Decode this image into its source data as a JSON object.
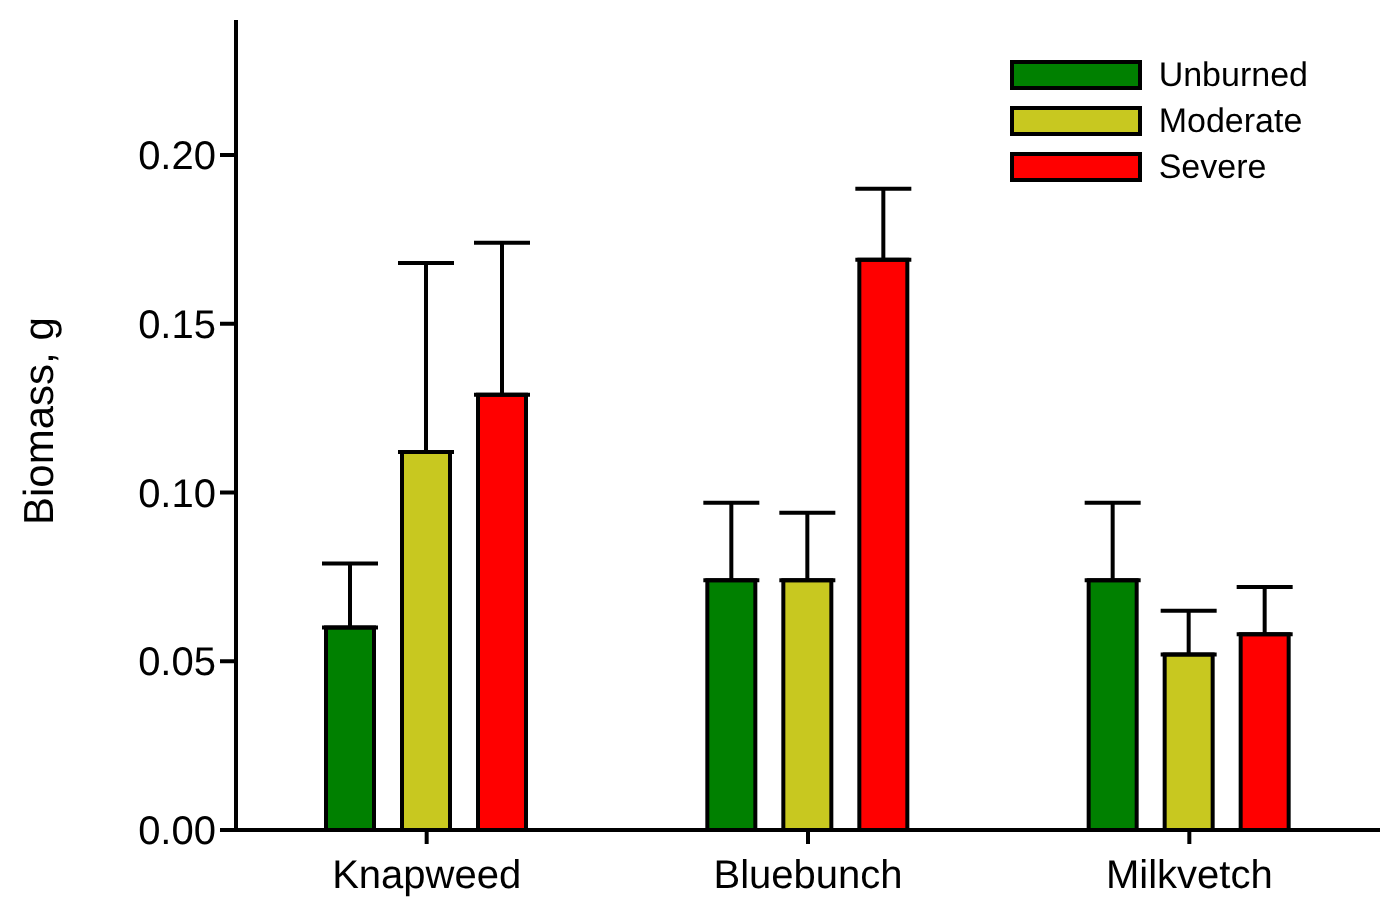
{
  "chart_data": {
    "type": "bar",
    "ylabel": "Biomass, g",
    "categories": [
      "Knapweed",
      "Bluebunch",
      "Milkvetch"
    ],
    "series": [
      {
        "name": "Unburned",
        "color": "#008000",
        "values": [
          0.06,
          0.074,
          0.074
        ],
        "errors": [
          [
            0.06,
            0.079
          ],
          [
            0.074,
            0.097
          ],
          [
            0.074,
            0.097
          ]
        ]
      },
      {
        "name": "Moderate",
        "color": "#c8c820",
        "values": [
          0.112,
          0.074,
          0.052
        ],
        "errors": [
          [
            0.112,
            0.168
          ],
          [
            0.074,
            0.094
          ],
          [
            0.052,
            0.065
          ]
        ]
      },
      {
        "name": "Severe",
        "color": "#ff0000",
        "values": [
          0.129,
          0.169,
          0.058
        ],
        "errors": [
          [
            0.129,
            0.174
          ],
          [
            0.169,
            0.19
          ],
          [
            0.058,
            0.072
          ]
        ]
      }
    ],
    "ylim": [
      0,
      0.24
    ],
    "yticks": [
      {
        "value": 0,
        "label": "0.00"
      },
      {
        "value": 0.05,
        "label": "0.05"
      },
      {
        "value": 0.1,
        "label": "0.10"
      },
      {
        "value": 0.15,
        "label": "0.15"
      },
      {
        "value": 0.2,
        "label": "0.20"
      }
    ],
    "grid": false,
    "legend": "top right"
  }
}
